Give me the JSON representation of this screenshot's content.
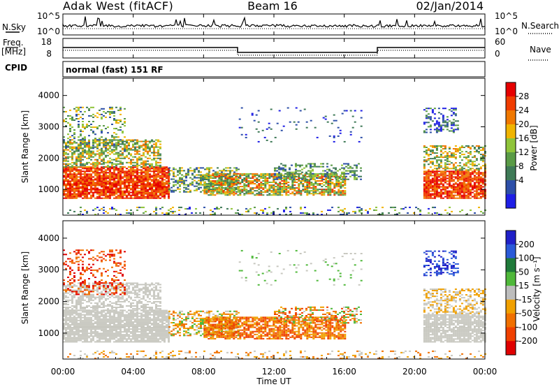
{
  "header": {
    "site": "Adak West (fitACF)",
    "beam": "Beam 16",
    "date": "02/Jan/2014"
  },
  "panels": {
    "nsky_label": "N.Sky",
    "nsearch_label": "N.Search",
    "nsky_ticks": [
      "10^5",
      "10^0"
    ],
    "nsearch_ticks": [
      "10^5",
      "10^0"
    ],
    "freq_label": "Freq.",
    "freq_unit": "[MHz]",
    "freq_ticks": [
      "18",
      "8"
    ],
    "nave_label": "Nave",
    "nave_ticks": [
      "60",
      "0"
    ],
    "cpid_label": "CPID",
    "cpid_text": "normal (fast) 151 RF"
  },
  "colors": {
    "power": [
      "#1e1ee6",
      "#2d4fa8",
      "#3f7a57",
      "#5a9b46",
      "#8fc43a",
      "#f0b400",
      "#f07800",
      "#f03c00",
      "#e60000"
    ],
    "velocity": [
      "#2020c8",
      "#2a5ad8",
      "#1f7a3a",
      "#4fb83a",
      "#bdbdbd",
      "#f0a000",
      "#f07000",
      "#f04000",
      "#e00000"
    ],
    "background_gray": "#c8c8c0"
  },
  "chart_data": [
    {
      "type": "heatmap",
      "title": "Power",
      "xlabel": "",
      "ylabel": "Slant Range [km]",
      "x_ticks": [
        "00:00",
        "04:00",
        "08:00",
        "12:00",
        "16:00",
        "20:00",
        "00:00"
      ],
      "y_ticks": [
        "1000",
        "2000",
        "3000",
        "4000"
      ],
      "ylim": [
        180,
        4550
      ],
      "colorbar_label": "Power [dB]",
      "colorbar_ticks": [
        "4",
        "8",
        "12",
        "16",
        "20",
        "24",
        "28"
      ]
    },
    {
      "type": "heatmap",
      "title": "Velocity",
      "xlabel": "Time UT",
      "ylabel": "Slant Range [km]",
      "x_ticks": [
        "00:00",
        "04:00",
        "08:00",
        "12:00",
        "16:00",
        "20:00",
        "00:00"
      ],
      "y_ticks": [
        "1000",
        "2000",
        "3000",
        "4000"
      ],
      "ylim": [
        180,
        4550
      ],
      "colorbar_label": "Velocity [m s⁻¹]",
      "colorbar_ticks": [
        "200",
        "100",
        "50",
        "15",
        "-15",
        "-50",
        "-100",
        "-200"
      ]
    }
  ]
}
